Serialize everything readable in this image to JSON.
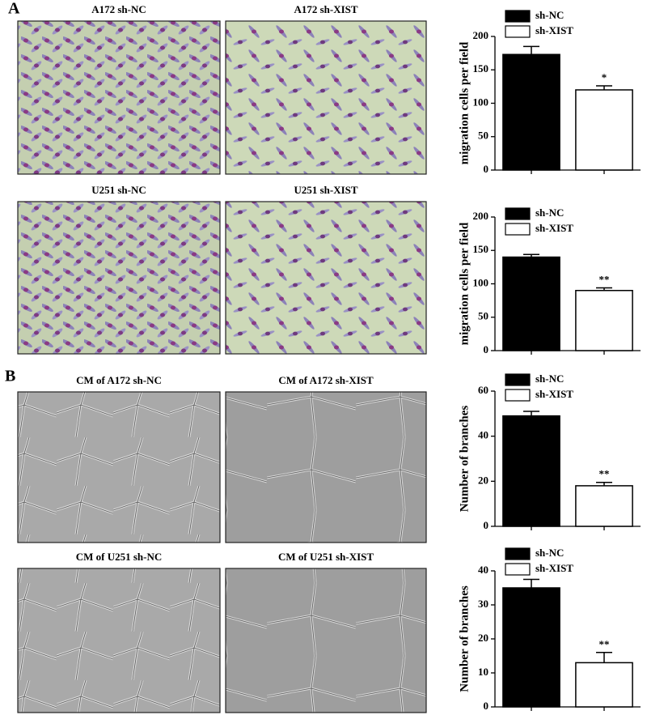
{
  "panel_labels": [
    "A",
    "B"
  ],
  "image_labels": [
    "A172 sh-NC",
    "A172 sh-XIST",
    "U251 sh-NC",
    "U251 sh-XIST",
    "CM of A172 sh-NC",
    "CM of A172 sh-XIST",
    "CM of U251 sh-NC",
    "CM of U251 sh-XIST"
  ],
  "chart_data": [
    {
      "type": "bar",
      "ylabel": "migration cells per field",
      "ylim": [
        0,
        200
      ],
      "yticks": [
        0,
        50,
        100,
        150,
        200
      ],
      "annotation": "*",
      "series": [
        {
          "name": "sh-NC",
          "color": "#000000",
          "values": [
            173
          ],
          "errors": [
            12
          ]
        },
        {
          "name": "sh-XIST",
          "color": "#ffffff",
          "values": [
            120
          ],
          "errors": [
            6
          ]
        }
      ]
    },
    {
      "type": "bar",
      "ylabel": "migration cells per field",
      "ylim": [
        0,
        200
      ],
      "yticks": [
        0,
        50,
        100,
        150,
        200
      ],
      "annotation": "**",
      "series": [
        {
          "name": "sh-NC",
          "color": "#000000",
          "values": [
            140
          ],
          "errors": [
            4
          ]
        },
        {
          "name": "sh-XIST",
          "color": "#ffffff",
          "values": [
            90
          ],
          "errors": [
            4
          ]
        }
      ]
    },
    {
      "type": "bar",
      "ylabel": "Number of branches",
      "ylim": [
        0,
        60
      ],
      "yticks": [
        0,
        20,
        40,
        60
      ],
      "annotation": "**",
      "series": [
        {
          "name": "sh-NC",
          "color": "#000000",
          "values": [
            49
          ],
          "errors": [
            2
          ]
        },
        {
          "name": "sh-XIST",
          "color": "#ffffff",
          "values": [
            18
          ],
          "errors": [
            1.5
          ]
        }
      ]
    },
    {
      "type": "bar",
      "ylabel": "Number of branches",
      "ylim": [
        0,
        40
      ],
      "yticks": [
        0,
        10,
        20,
        30,
        40
      ],
      "annotation": "**",
      "series": [
        {
          "name": "sh-NC",
          "color": "#000000",
          "values": [
            35
          ],
          "errors": [
            2.5
          ]
        },
        {
          "name": "sh-XIST",
          "color": "#ffffff",
          "values": [
            13
          ],
          "errors": [
            3
          ]
        }
      ]
    }
  ]
}
